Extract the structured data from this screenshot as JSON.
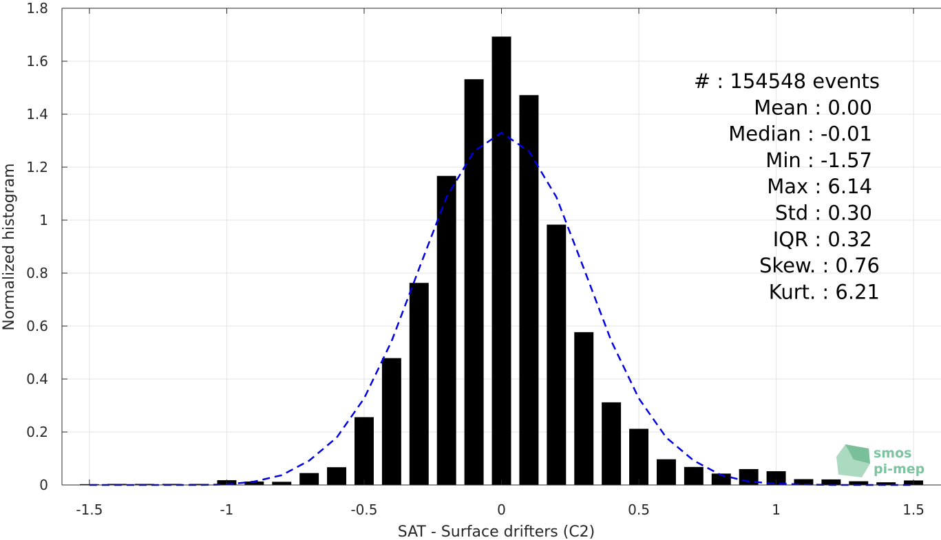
{
  "chart_data": {
    "type": "bar",
    "xlabel": "SAT - Surface drifters (C2)",
    "ylabel": "Normalized histogram",
    "xlim": [
      -1.6,
      1.6
    ],
    "ylim": [
      0,
      1.8
    ],
    "xticks": [
      -1.5,
      -1,
      -0.5,
      0,
      0.5,
      1,
      1.5
    ],
    "xtick_labels": [
      "-1.5",
      "-1",
      "-0.5",
      "0",
      "0.5",
      "1",
      "1.5"
    ],
    "yticks": [
      0,
      0.2,
      0.4,
      0.6,
      0.8,
      1,
      1.2,
      1.4,
      1.6,
      1.8
    ],
    "ytick_labels": [
      "0",
      "0.2",
      "0.4",
      "0.6",
      "0.8",
      "1",
      "1.2",
      "1.4",
      "1.6",
      "1.8"
    ],
    "grid": true,
    "bar_width": 0.07,
    "bar_color": "#000000",
    "series": [
      {
        "x": [
          -1.5,
          -1.4,
          -1.3,
          -1.2,
          -1.1,
          -1.0,
          -0.9,
          -0.8,
          -0.7,
          -0.6,
          -0.5,
          -0.4,
          -0.3,
          -0.2,
          -0.1,
          0.0,
          0.1,
          0.2,
          0.3,
          0.4,
          0.5,
          0.6,
          0.7,
          0.8,
          0.9,
          1.0,
          1.1,
          1.2,
          1.3,
          1.4,
          1.5
        ],
        "values": [
          0.003,
          0.004,
          0.004,
          0.004,
          0.004,
          0.018,
          0.013,
          0.012,
          0.045,
          0.067,
          0.256,
          0.479,
          0.763,
          1.167,
          1.532,
          1.693,
          1.472,
          0.983,
          0.577,
          0.312,
          0.212,
          0.097,
          0.068,
          0.043,
          0.06,
          0.052,
          0.022,
          0.021,
          0.014,
          0.01,
          0.017
        ]
      }
    ],
    "fit_curve": {
      "style": "dashed",
      "color": "#0000e0",
      "x": [
        -1.5,
        -1.4,
        -1.3,
        -1.2,
        -1.1,
        -1.0,
        -0.9,
        -0.8,
        -0.7,
        -0.6,
        -0.5,
        -0.4,
        -0.3,
        -0.2,
        -0.1,
        0.0,
        0.1,
        0.2,
        0.3,
        0.4,
        0.5,
        0.6,
        0.7,
        0.8,
        0.9,
        1.0,
        1.1,
        1.2,
        1.3,
        1.4,
        1.5
      ],
      "values": [
        0.0,
        0.0,
        0.0,
        0.0,
        0.0,
        0.002,
        0.013,
        0.037,
        0.092,
        0.179,
        0.327,
        0.543,
        0.817,
        1.087,
        1.26,
        1.33,
        1.26,
        1.087,
        0.817,
        0.543,
        0.327,
        0.179,
        0.092,
        0.037,
        0.013,
        0.005,
        0.002,
        0.0,
        0.0,
        0.0,
        0.0
      ]
    },
    "annotations": [
      "#  : 154548 events",
      "Mean : 0.00",
      "Median : -0.01",
      "Min : -1.57",
      "Max : 6.14",
      "Std : 0.30",
      "IQR : 0.32",
      "Skew. : 0.76",
      "Kurt. : 6.21"
    ]
  },
  "logo": {
    "line1": "smos",
    "line2": "pi-mep",
    "color": "#7cc4a0"
  }
}
